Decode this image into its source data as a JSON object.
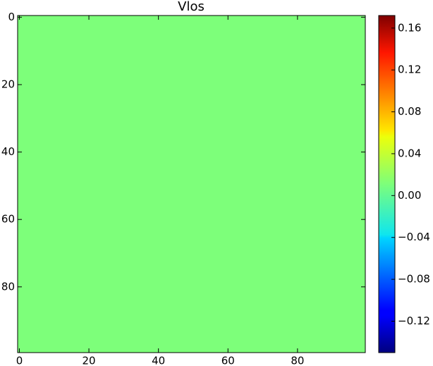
{
  "chart_data": {
    "type": "image",
    "title": "Vlos",
    "colormap": "jet",
    "xlim": [
      -0.5,
      99.5
    ],
    "ylim": [
      99.5,
      -0.5
    ],
    "xticks": [
      0,
      20,
      40,
      60,
      80
    ],
    "yticks": [
      0,
      20,
      40,
      60,
      80
    ],
    "colorbar": {
      "clim": [
        -0.15,
        0.172
      ],
      "ticks": [
        {
          "value": -0.12,
          "label": "−0.12"
        },
        {
          "value": -0.08,
          "label": "−0.08"
        },
        {
          "value": -0.04,
          "label": "−0.04"
        },
        {
          "value": 0,
          "label": "0.00"
        },
        0.04,
        0.08,
        0.12,
        0.16
      ]
    }
  }
}
